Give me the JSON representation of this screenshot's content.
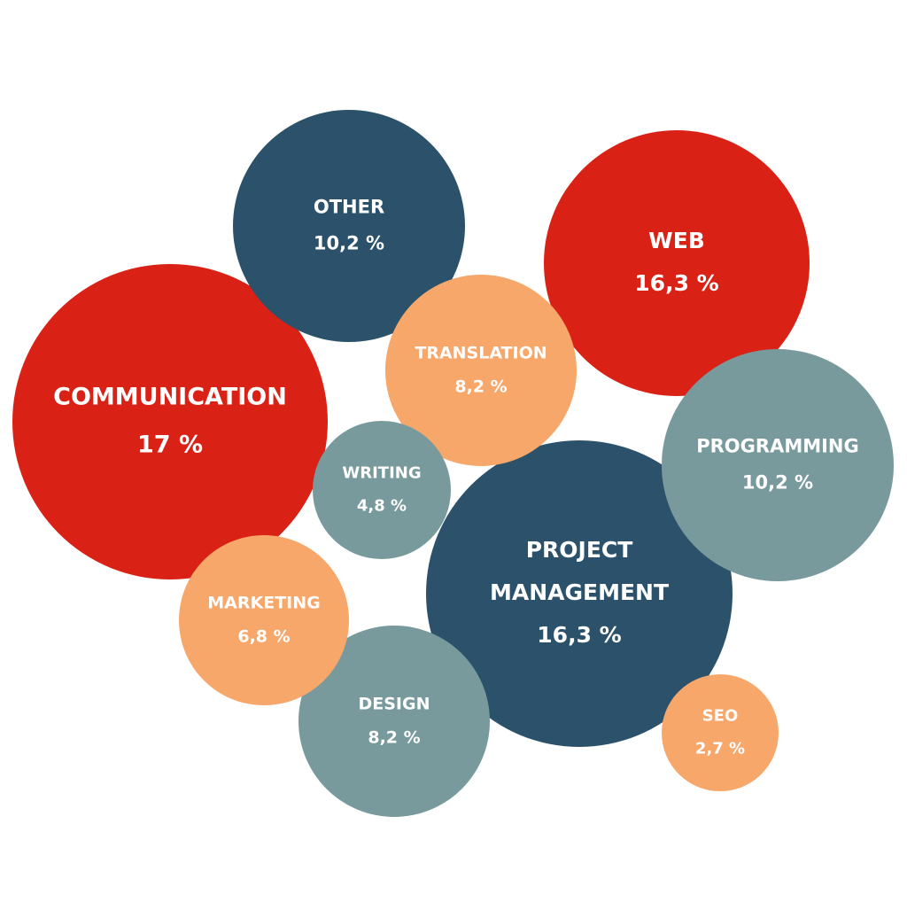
{
  "chart_data": {
    "type": "bubble",
    "title": "",
    "unit": "%",
    "colors": {
      "red": "#da2116",
      "navy": "#2b526a",
      "teal": "#789a9c",
      "orange": "#f7a76a"
    },
    "bubbles": [
      {
        "category": "COMMUNICATION",
        "lines": [
          "COMMUNICATION"
        ],
        "value": 17,
        "value_label": "17 %",
        "color": "#da2116"
      },
      {
        "category": "WEB",
        "lines": [
          "WEB"
        ],
        "value": 16.3,
        "value_label": "16,3 %",
        "color": "#da2116"
      },
      {
        "category": "PROJECT MANAGEMENT",
        "lines": [
          "PROJECT",
          "MANAGEMENT"
        ],
        "value": 16.3,
        "value_label": "16,3 %",
        "color": "#2b526a"
      },
      {
        "category": "OTHER",
        "lines": [
          "OTHER"
        ],
        "value": 10.2,
        "value_label": "10,2 %",
        "color": "#2b526a"
      },
      {
        "category": "PROGRAMMING",
        "lines": [
          "PROGRAMMING"
        ],
        "value": 10.2,
        "value_label": "10,2 %",
        "color": "#789a9c"
      },
      {
        "category": "TRANSLATION",
        "lines": [
          "TRANSLATION"
        ],
        "value": 8.2,
        "value_label": "8,2 %",
        "color": "#f7a76a"
      },
      {
        "category": "DESIGN",
        "lines": [
          "DESIGN"
        ],
        "value": 8.2,
        "value_label": "8,2 %",
        "color": "#789a9c"
      },
      {
        "category": "MARKETING",
        "lines": [
          "MARKETING"
        ],
        "value": 6.8,
        "value_label": "6,8 %",
        "color": "#f7a76a"
      },
      {
        "category": "WRITING",
        "lines": [
          "WRITING"
        ],
        "value": 4.8,
        "value_label": "4,8 %",
        "color": "#789a9c"
      },
      {
        "category": "SEO",
        "lines": [
          "SEO"
        ],
        "value": 2.7,
        "value_label": "2,7 %",
        "color": "#f7a76a"
      }
    ]
  }
}
